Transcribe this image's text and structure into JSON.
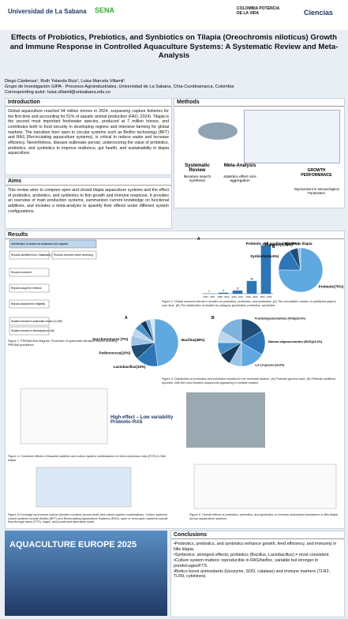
{
  "header": {
    "left_logo": "Universidad de La Sabana",
    "center_logo": "SENA",
    "right_logo_1": "COLOMBIA POTENCIA DE LA VIDA",
    "right_logo_2": "Ciencias"
  },
  "title": "Effects of Probiotics, Prebiotics, and Synbiotics on Tilapia (Oreochromis niloticus) Growth and Immune Response in Controlled Aquaculture Systems: A Systematic Review and Meta-Analysis",
  "authors": "Diego Cárdenas¹, Ruth Yolanda Ruiz¹, Luisa Marcela Villamil¹",
  "affiliation": "Grupo de Investigación GIPA - Procesos Agroindustriales, Universidad de La Sabana, Chía-Cundinamarca, Colombia",
  "corresponding": "Corresponding autor: luisa.villamil@unisabana.edu.co",
  "introduction": {
    "heading": "Introduction",
    "text": "Global aquaculture reached 94 million tonnes in 2024, surpassing capture fisheries for the first time and accounting for 51% of aquatic animal production (FAO, 2024). Tilapia is the second most important freshwater species, produced at 7 million tonnes, and contributes both to food security in developing regions and intensive farming for global markets. The transition from open to circular systems such as Biofloc technology (BFT) and RAS (Recirculating aquaculture systems), is critical to reduce waste and increase efficiency. Nevertheless, disease outbreaks persist, underscoring the value of probiotics, prebiotics, and synbiotics to improve resilience, gut health, and sustainability in tilapia aquaculture."
  },
  "methods": {
    "heading": "Methods",
    "items": [
      "Systematic Review",
      "literature search synthesis",
      "Meta-Analysis",
      "statistics effect size aggregation",
      "GROWTH PERFORMANCE",
      "Improvement in Immunological Parameters"
    ]
  },
  "aims": {
    "heading": "Aims",
    "text": "This review aims to compare open and closed tilapia aquaculture systems and the effect of probiotics, prebiotics, and synbiotics to fish growth and immune response. It provides an overview of main production systems, summarizes current knowledge on functional additives, and includes a meta-analysis to quantify their effects under different system configurations."
  },
  "results": {
    "heading": "Results",
    "fig1": "Figure 1. PRISMA flow diagram. Flowchart of systematic literature search acording PRISMA guidelines.",
    "fig2": "Figure 2. Global research trends in studies on probiotics, prebiotics, and synbiotics. (A) The cumulative number of published papers over time. (B) The distribution of studies by category (probiotics, prebiotics, synbiotics",
    "fig3": "Figure 3. Distribution of probiotics and prebiotics reported in the reviewed studies. (A) Probiotic genera used. (B) Prebiotic additives reported, with the most studied compounds appearing in multiple studies.",
    "fig4": "Figure 4. Clustered effects of bioactive additive and culture system combinations on feed conversion ratio (FCR) in Nile tilapia.",
    "fig4_note": "High effect – Low variability Probiotic-RAS",
    "fig5": "Figure 5.Coverage by immune marker (studies number) across biotic and culture-system combinations. Culture systems: closed systems include Biofloc (BFT) and Recirculating Aquaculture Systems (RAS); open or semi-open systems include flow-through tanks (FTS), cages, and ponds and laboratory scale.",
    "fig6": "Figure 6. Overall effects of probiotics, prebiotics, and synbiotics on immune-antioxidant biomarkers in Nile tilapia across aquaculture systems.",
    "prisma": [
      "Identification of studies via databases and registers",
      "Records identified from: Databases (n = 9)",
      "Records removed before screening",
      "Records screened",
      "Reports sought for retrieval",
      "Reports assessed for eligibility",
      "Studies included in systematic review (n=168)",
      "Studies included in Metanalysis (n=56)"
    ]
  },
  "bar": {
    "categories": [
      "2001 - 2007",
      "2008 - 2012",
      "2013 - 2017",
      "2018 - 2020",
      "2021 - 2024"
    ],
    "values": [
      1,
      4,
      12,
      49,
      186
    ],
    "ylim": [
      0,
      200
    ],
    "color": "#2e75b6",
    "label": "A"
  },
  "pie_type": {
    "heading": "Biotics in tilapia",
    "categories": [
      "Probiotic(75%)",
      "Synbiotic(16.6%)",
      "Prebiotic(6.26%)",
      "Probiotic and postbiotic(2.08%)"
    ],
    "values": [
      75,
      16.6,
      6.26,
      2.08
    ],
    "colors": [
      "#5fa8e0",
      "#2e75b6",
      "#1f4e79",
      "#9dc3e6"
    ],
    "label": "B"
  },
  "pie_a": {
    "label": "A",
    "categories": [
      "Bacillus(48%)",
      "Lactobacillus(15%)",
      "Pediococcus(10%)",
      "Saccharomyces (7%)",
      null,
      null,
      null,
      null,
      null
    ],
    "values": [
      48,
      15,
      10,
      7,
      5,
      5,
      4,
      3,
      3
    ],
    "colors": [
      "#5fa8e0",
      "#2e75b6",
      "#1f4e79",
      "#9dc3e6",
      "#bdd7ee",
      "#4a90c8",
      "#163a5c",
      "#7fb2dd",
      "#d6e6f5"
    ]
  },
  "pie_b": {
    "label": "B",
    "categories": [
      "Fructooligosaccharides (FOS)(16.6%)",
      "Mannan-oligosaccharides (MOS)(16.6%)",
      "1,3-1,6 glucan (16.6%)",
      null,
      null,
      null,
      null,
      null
    ],
    "values": [
      16.6,
      16.6,
      16.6,
      8.3,
      8.3,
      8.3,
      8.3,
      16.6
    ],
    "colors": [
      "#1f4e79",
      "#2e75b6",
      "#5fa8e0",
      "#9dc3e6",
      "#163a5c",
      "#4a90c8",
      "#bdd7ee",
      "#7fb2dd"
    ]
  },
  "conclusions": {
    "heading": "Conclusions",
    "items": [
      "•Probiotics, prebiotics, and synbiotics enhance growth, feed efficiency, and immunity in Nile tilapia.",
      "•Synbiotics: strongest effects; probiotics (Bacillus, Lactobacillus) = most consistent.",
      "•Culture system matters: reproducible in RAS/biofloc, variable but stronger in ponds/cages/FTS.",
      "•Biotics boost antioxidants (lysozyme, SOD, catalase) and immune markers (TLR2, TLR9, cytokines)."
    ]
  },
  "banner": "AQUACULTURE EUROPE 2025"
}
